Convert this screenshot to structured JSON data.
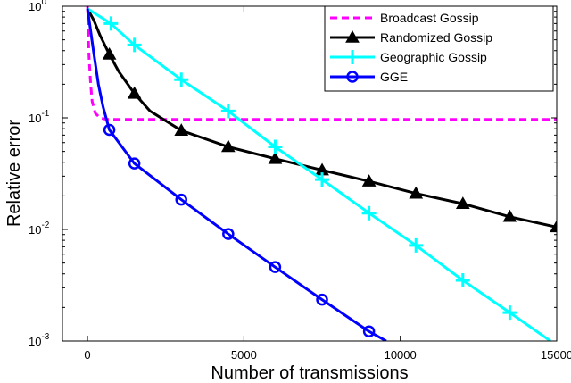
{
  "chart_data": {
    "type": "line",
    "xlabel": "Number of transmissions",
    "ylabel": "Relative error",
    "xscale": "linear",
    "yscale": "log",
    "xlim": [
      -800,
      15000
    ],
    "ylim": [
      0.001,
      1
    ],
    "xticks": [
      0,
      5000,
      10000,
      15000
    ],
    "xtick_labels": [
      "0",
      "5000",
      "10000",
      "15000"
    ],
    "yticks": [
      {
        "value": 1,
        "base": "10",
        "exp": "0"
      },
      {
        "value": 0.1,
        "base": "10",
        "exp": "-1"
      },
      {
        "value": 0.01,
        "base": "10",
        "exp": "-2"
      },
      {
        "value": 0.001,
        "base": "10",
        "exp": "-3"
      }
    ],
    "grid": false,
    "legend_position": "top-right",
    "series": [
      {
        "name": "Broadcast Gossip",
        "color": "#ff00ff",
        "style": "dashed",
        "marker": "none",
        "points": [
          [
            0,
            1.0
          ],
          [
            20,
            0.6
          ],
          [
            50,
            0.35
          ],
          [
            100,
            0.2
          ],
          [
            150,
            0.14
          ],
          [
            250,
            0.11
          ],
          [
            400,
            0.1
          ],
          [
            600,
            0.097
          ],
          [
            15000,
            0.097
          ]
        ],
        "markers": []
      },
      {
        "name": "Randomized Gossip",
        "color": "#000000",
        "style": "solid",
        "marker": "triangle",
        "points": [
          [
            0,
            0.95
          ],
          [
            200,
            0.75
          ],
          [
            400,
            0.55
          ],
          [
            700,
            0.37
          ],
          [
            1000,
            0.26
          ],
          [
            1500,
            0.165
          ],
          [
            2000,
            0.115
          ],
          [
            3000,
            0.077
          ],
          [
            4500,
            0.055
          ],
          [
            6000,
            0.043
          ],
          [
            7500,
            0.034
          ],
          [
            9000,
            0.027
          ],
          [
            10500,
            0.021
          ],
          [
            12000,
            0.017
          ],
          [
            13500,
            0.013
          ],
          [
            15000,
            0.0105
          ]
        ],
        "markers": [
          [
            700,
            0.37
          ],
          [
            1500,
            0.165
          ],
          [
            3000,
            0.077
          ],
          [
            4500,
            0.055
          ],
          [
            6000,
            0.043
          ],
          [
            7500,
            0.034
          ],
          [
            9000,
            0.027
          ],
          [
            10500,
            0.021
          ],
          [
            12000,
            0.017
          ],
          [
            13500,
            0.013
          ],
          [
            15000,
            0.0105
          ]
        ]
      },
      {
        "name": "Geographic Gossip",
        "color": "#00ffff",
        "style": "solid",
        "marker": "plus",
        "points": [
          [
            0,
            0.95
          ],
          [
            750,
            0.7
          ],
          [
            1500,
            0.45
          ],
          [
            3000,
            0.22
          ],
          [
            4500,
            0.115
          ],
          [
            6000,
            0.055
          ],
          [
            7500,
            0.028
          ],
          [
            9000,
            0.014
          ],
          [
            10500,
            0.0072
          ],
          [
            12000,
            0.0035
          ],
          [
            13500,
            0.0018
          ],
          [
            14800,
            0.001
          ]
        ],
        "markers": [
          [
            750,
            0.7
          ],
          [
            1500,
            0.45
          ],
          [
            3000,
            0.22
          ],
          [
            4500,
            0.115
          ],
          [
            6000,
            0.055
          ],
          [
            7500,
            0.028
          ],
          [
            9000,
            0.014
          ],
          [
            10500,
            0.0072
          ],
          [
            12000,
            0.0035
          ],
          [
            13500,
            0.0018
          ]
        ]
      },
      {
        "name": "GGE",
        "color": "#0000ff",
        "style": "solid",
        "marker": "circle",
        "points": [
          [
            0,
            0.95
          ],
          [
            100,
            0.6
          ],
          [
            200,
            0.38
          ],
          [
            350,
            0.2
          ],
          [
            500,
            0.125
          ],
          [
            700,
            0.078
          ],
          [
            1500,
            0.039
          ],
          [
            3000,
            0.0185
          ],
          [
            4500,
            0.0091
          ],
          [
            6000,
            0.0046
          ],
          [
            7500,
            0.00235
          ],
          [
            9000,
            0.00122
          ],
          [
            9550,
            0.001
          ]
        ],
        "markers": [
          [
            700,
            0.078
          ],
          [
            1500,
            0.039
          ],
          [
            3000,
            0.0185
          ],
          [
            4500,
            0.0091
          ],
          [
            6000,
            0.0046
          ],
          [
            7500,
            0.00235
          ],
          [
            9000,
            0.00122
          ]
        ]
      }
    ]
  }
}
